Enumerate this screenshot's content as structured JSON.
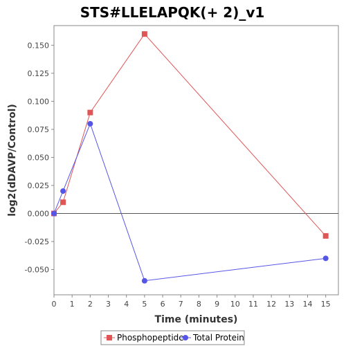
{
  "chart_data": {
    "type": "line",
    "title": "STS#LLELAPQK(+ 2)_v1",
    "xlabel": "Time (minutes)",
    "ylabel": "log2(dDAVP/Control)",
    "xlim": [
      0,
      15.7
    ],
    "ylim": [
      -0.0725,
      0.1675
    ],
    "x_ticks": [
      0,
      1,
      2,
      3,
      4,
      5,
      6,
      7,
      8,
      9,
      10,
      11,
      12,
      13,
      14,
      15
    ],
    "y_ticks": [
      -0.05,
      -0.025,
      0.0,
      0.025,
      0.05,
      0.075,
      0.1,
      0.125,
      0.15
    ],
    "y_tick_labels": [
      "-0.050",
      "-0.025",
      "0.000",
      "0.025",
      "0.050",
      "0.075",
      "0.100",
      "0.125",
      "0.150"
    ],
    "zero_line": true,
    "grid": false,
    "legend_position": "bottom",
    "series": [
      {
        "name": "Phosphopeptide",
        "color": "#e05555",
        "marker": "square",
        "points": [
          [
            0,
            0.0
          ],
          [
            0.5,
            0.01
          ],
          [
            2,
            0.09
          ],
          [
            5,
            0.16
          ],
          [
            15,
            -0.02
          ]
        ]
      },
      {
        "name": "Total Protein",
        "color": "#5555e8",
        "marker": "circle",
        "points": [
          [
            0,
            0.0
          ],
          [
            0.5,
            0.02
          ],
          [
            2,
            0.08
          ],
          [
            5,
            -0.06
          ],
          [
            15,
            -0.04
          ]
        ]
      }
    ]
  }
}
